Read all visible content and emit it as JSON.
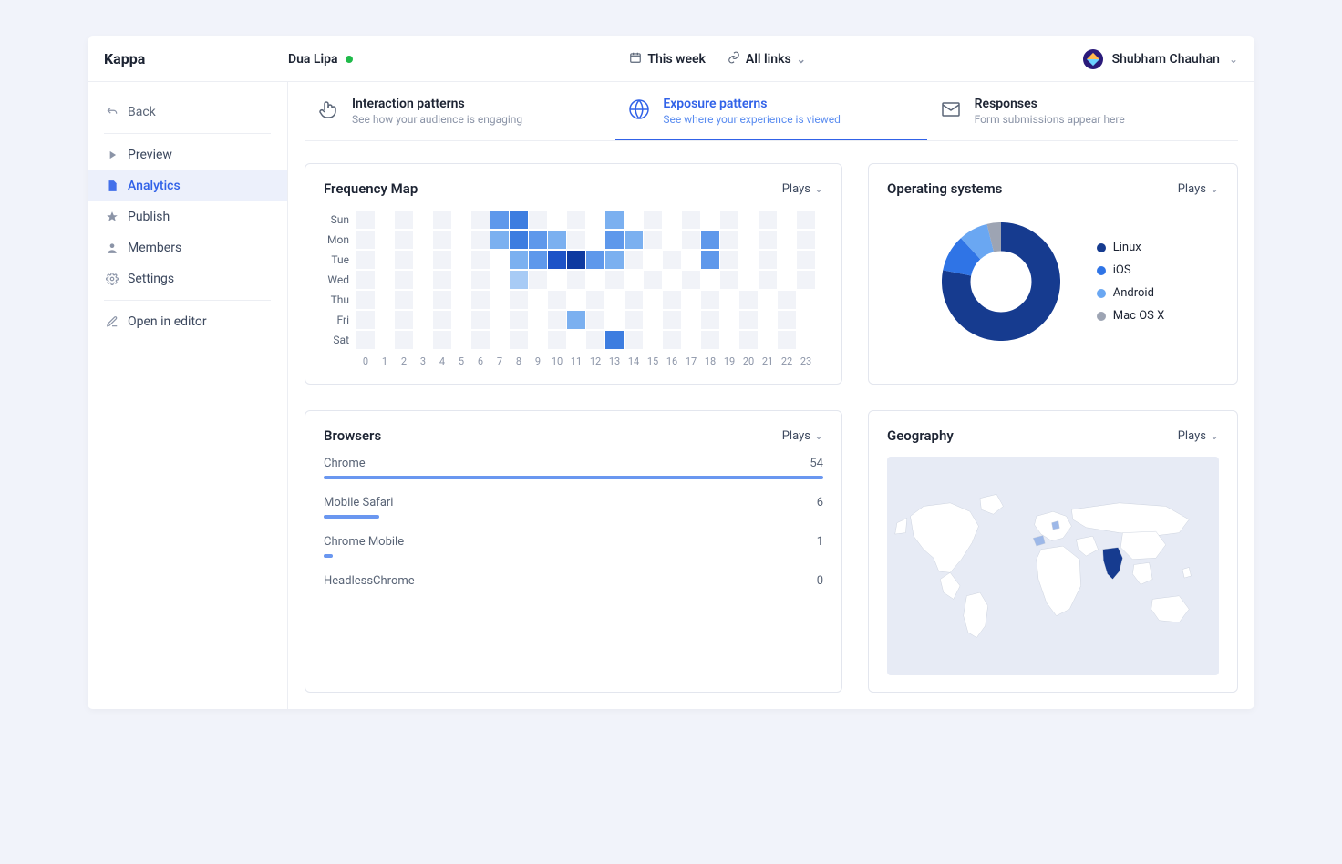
{
  "app": {
    "name": "Kappa"
  },
  "colors": {
    "accent": "#3162e8",
    "text": "#1d2433",
    "muted": "#8b94a7",
    "border": "#e3e6ee",
    "heatmap_bg": "#f1f3f8",
    "heatmap_scale": [
      "#f1f3f8",
      "#cfe0f8",
      "#a8cbf5",
      "#7bb0f0",
      "#5e98eb",
      "#3d7de0",
      "#1d53c7",
      "#0e3aa0"
    ],
    "map_bg": "#e7ebf5",
    "map_land": "#ffffff",
    "map_border": "#c7ceda",
    "map_highlight": "#163b8f"
  },
  "topbar": {
    "project": "Dua Lipa",
    "status_color": "#1fba4a",
    "period_label": "This week",
    "links_label": "All links",
    "user": "Shubham Chauhan"
  },
  "sidebar": {
    "back": "Back",
    "items": [
      {
        "icon": "play",
        "label": "Preview"
      },
      {
        "icon": "doc",
        "label": "Analytics"
      },
      {
        "icon": "compass",
        "label": "Publish"
      },
      {
        "icon": "user",
        "label": "Members"
      },
      {
        "icon": "gear",
        "label": "Settings"
      }
    ],
    "editor": {
      "icon": "pencil",
      "label": "Open in editor"
    },
    "active_index": 1
  },
  "tabs": {
    "items": [
      {
        "icon": "pointer",
        "title": "Interaction patterns",
        "sub": "See how your audience is engaging"
      },
      {
        "icon": "globe",
        "title": "Exposure patterns",
        "sub": "See where your experience is viewed"
      },
      {
        "icon": "mail",
        "title": "Responses",
        "sub": "Form submissions appear here"
      }
    ],
    "active_index": 1
  },
  "heatmap": {
    "title": "Frequency Map",
    "menu": "Plays",
    "days": [
      "Sun",
      "Mon",
      "Tue",
      "Wed",
      "Thu",
      "Fri",
      "Sat"
    ],
    "hours": [
      0,
      1,
      2,
      3,
      4,
      5,
      6,
      7,
      8,
      9,
      10,
      11,
      12,
      13,
      14,
      15,
      16,
      17,
      18,
      19,
      20,
      21,
      22,
      23
    ],
    "data": [
      [
        0,
        -1,
        0,
        -1,
        0,
        -1,
        0,
        4,
        5,
        0,
        -1,
        0,
        -1,
        3,
        -1,
        0,
        -1,
        0,
        -1,
        0,
        -1,
        0,
        -1,
        0
      ],
      [
        0,
        -1,
        0,
        -1,
        0,
        -1,
        0,
        3,
        5,
        4,
        3,
        0,
        -1,
        4,
        3,
        0,
        -1,
        0,
        4,
        0,
        -1,
        0,
        -1,
        0
      ],
      [
        0,
        -1,
        0,
        -1,
        0,
        -1,
        0,
        -1,
        3,
        4,
        6,
        7,
        4,
        3,
        0,
        -1,
        0,
        -1,
        4,
        0,
        -1,
        0,
        -1,
        0
      ],
      [
        0,
        -1,
        0,
        -1,
        0,
        -1,
        0,
        -1,
        2,
        0,
        -1,
        0,
        -1,
        0,
        -1,
        0,
        -1,
        0,
        -1,
        0,
        -1,
        0,
        -1,
        0
      ],
      [
        0,
        -1,
        0,
        -1,
        0,
        -1,
        0,
        -1,
        0,
        -1,
        0,
        -1,
        0,
        -1,
        0,
        -1,
        0,
        -1,
        0,
        -1,
        0,
        -1,
        0,
        -1
      ],
      [
        0,
        -1,
        0,
        -1,
        0,
        -1,
        0,
        -1,
        0,
        -1,
        0,
        3,
        0,
        -1,
        0,
        -1,
        0,
        -1,
        0,
        -1,
        0,
        -1,
        0,
        -1
      ],
      [
        0,
        -1,
        0,
        -1,
        0,
        -1,
        0,
        -1,
        0,
        -1,
        0,
        -1,
        0,
        5,
        0,
        -1,
        0,
        -1,
        0,
        -1,
        0,
        -1,
        0,
        -1
      ]
    ]
  },
  "os": {
    "title": "Operating systems",
    "menu": "Plays",
    "items": [
      {
        "label": "Linux",
        "value": 78,
        "color": "#163b8f"
      },
      {
        "label": "iOS",
        "value": 10,
        "color": "#2f74e6"
      },
      {
        "label": "Android",
        "value": 8,
        "color": "#6aa7f2"
      },
      {
        "label": "Mac OS X",
        "value": 4,
        "color": "#9da4b3"
      }
    ],
    "inner_radius": 0.68
  },
  "browsers": {
    "title": "Browsers",
    "menu": "Plays",
    "max": 54,
    "bar_color": "#6a97f0",
    "items": [
      {
        "label": "Chrome",
        "value": 54
      },
      {
        "label": "Mobile Safari",
        "value": 6
      },
      {
        "label": "Chrome Mobile",
        "value": 1
      },
      {
        "label": "HeadlessChrome",
        "value": 0
      }
    ]
  },
  "geo": {
    "title": "Geography",
    "menu": "Plays",
    "highlighted": [
      "India"
    ],
    "partial": [
      "Spain",
      "Germany"
    ]
  }
}
